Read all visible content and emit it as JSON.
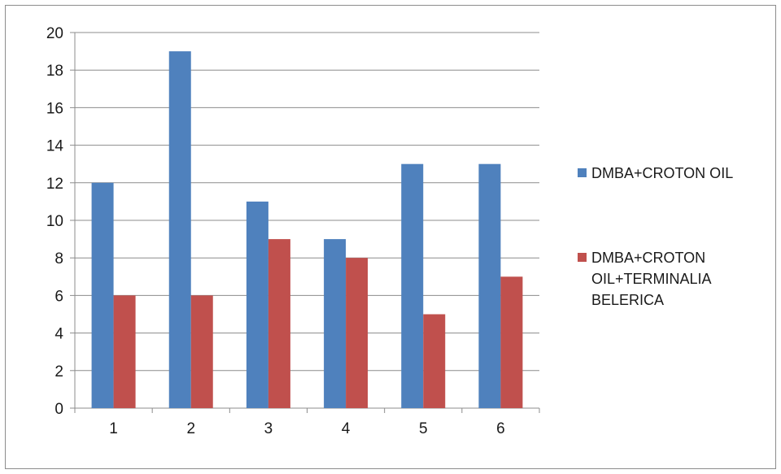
{
  "chart_data": {
    "type": "bar",
    "categories": [
      "1",
      "2",
      "3",
      "4",
      "5",
      "6"
    ],
    "series": [
      {
        "name": "DMBA+CROTON OIL",
        "color": "#4f81bd",
        "values": [
          12,
          19,
          11,
          9,
          13,
          13
        ]
      },
      {
        "name": "DMBA+CROTON OIL+TERMINALIA BELERICA",
        "color": "#c0504d",
        "values": [
          6,
          6,
          9,
          8,
          5,
          7
        ]
      }
    ],
    "title": "",
    "xlabel": "",
    "ylabel": "",
    "ylim": [
      0,
      20
    ],
    "yticks": [
      0,
      2,
      4,
      6,
      8,
      10,
      12,
      14,
      16,
      18,
      20
    ],
    "grid": true,
    "legend_position": "right",
    "legend_lines": [
      [
        "DMBA+CROTON OIL"
      ],
      [
        "DMBA+CROTON",
        "OIL+TERMINALIA",
        "BELERICA"
      ]
    ]
  }
}
